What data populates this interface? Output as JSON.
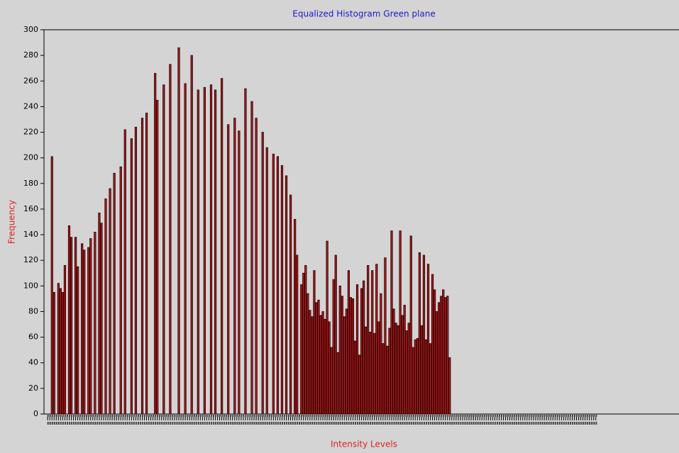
{
  "chart_data": {
    "type": "bar",
    "title": "Equalized Histogram Green plane",
    "x_label": "Intensity Levels",
    "y_label": "Frequency",
    "color": "#b3191c",
    "x": [
      2,
      3,
      5,
      6,
      7,
      8,
      10,
      11,
      13,
      14,
      16,
      17,
      19,
      20,
      22,
      24,
      25,
      27,
      29,
      31,
      34,
      36,
      39,
      41,
      44,
      46,
      50,
      51,
      54,
      57,
      61,
      64,
      67,
      70,
      73,
      76,
      78,
      81,
      84,
      87,
      89,
      92,
      95,
      97,
      100,
      102,
      105,
      107,
      109,
      111,
      113,
      115,
      116,
      118,
      119,
      120,
      121,
      122,
      123,
      124,
      125,
      126,
      127,
      128,
      129,
      130,
      131,
      132,
      133,
      134,
      135,
      136,
      137,
      138,
      139,
      140,
      141,
      142,
      143,
      144,
      145,
      146,
      147,
      148,
      149,
      150,
      151,
      152,
      153,
      154,
      155,
      156,
      157,
      158,
      159,
      160,
      161,
      162,
      163,
      164,
      165,
      166,
      167,
      168,
      169,
      170,
      171,
      172,
      173,
      174,
      175,
      176,
      177,
      178,
      179,
      180,
      181,
      182,
      183,
      184,
      185,
      186,
      187
    ],
    "values": [
      201,
      95,
      102,
      98,
      95,
      116,
      147,
      138,
      138,
      115,
      133,
      128,
      130,
      137,
      142,
      157,
      149,
      168,
      176,
      188,
      193,
      222,
      215,
      224,
      231,
      235,
      266,
      245,
      257,
      273,
      286,
      258,
      280,
      253,
      255,
      257,
      253,
      262,
      226,
      231,
      221,
      254,
      244,
      231,
      220,
      208,
      203,
      201,
      194,
      186,
      171,
      152,
      124,
      101,
      110,
      116,
      94,
      81,
      76,
      112,
      87,
      89,
      77,
      80,
      74,
      135,
      72,
      52,
      105,
      124,
      48,
      100,
      92,
      76,
      82,
      112,
      91,
      90,
      57,
      101,
      46,
      98,
      104,
      68,
      116,
      64,
      112,
      63,
      117,
      72,
      94,
      55,
      122,
      53,
      67,
      143,
      82,
      71,
      69,
      143,
      77,
      85,
      65,
      71,
      139,
      52,
      58,
      59,
      126,
      69,
      124,
      58,
      117,
      55,
      109,
      97,
      80,
      87,
      92,
      97,
      91,
      92,
      44
    ],
    "xlim": [
      0,
      256
    ],
    "ylim": [
      0,
      300
    ],
    "yticks": [
      0,
      20,
      40,
      60,
      80,
      100,
      120,
      140,
      160,
      180,
      200,
      220,
      240,
      260,
      280,
      300
    ]
  }
}
